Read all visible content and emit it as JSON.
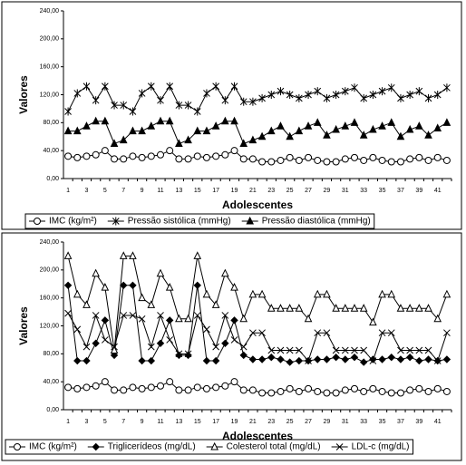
{
  "chart_data": [
    {
      "type": "line",
      "xlabel": "Adolescentes",
      "ylabel": "Valores",
      "categories": [
        "1",
        null,
        "3",
        null,
        "5",
        null,
        "7",
        null,
        "9",
        null,
        "11",
        null,
        "13",
        null,
        "15",
        null,
        "17",
        null,
        "19",
        null,
        "21",
        null,
        "23",
        null,
        "25",
        null,
        "27",
        null,
        "29",
        null,
        "31",
        null,
        "33",
        null,
        "35",
        null,
        "37",
        null,
        "39",
        null,
        "41",
        null
      ],
      "ylim": [
        0,
        240
      ],
      "yticks": [
        {
          "value": 0,
          "label": "0,00"
        },
        {
          "value": 40,
          "label": "40,00"
        },
        {
          "value": 80,
          "label": "80,00"
        },
        {
          "value": 120,
          "label": "120,00"
        },
        {
          "value": 160,
          "label": "160,00"
        },
        {
          "value": 200,
          "label": "200,00"
        },
        {
          "value": 240,
          "label": "240,00"
        }
      ],
      "series": [
        {
          "name": "IMC (kg/m²)",
          "color": "#000000",
          "marker": "circle",
          "values": [
            32,
            30,
            32,
            34,
            40,
            28,
            28,
            32,
            30,
            32,
            34,
            40,
            28,
            28,
            32,
            30,
            32,
            34,
            40,
            28,
            28,
            24,
            24,
            26,
            30,
            26,
            30,
            26,
            24,
            24,
            28,
            30,
            26,
            30,
            26,
            24,
            24,
            28,
            30,
            26,
            30,
            26
          ]
        },
        {
          "name": "Pressão sistólica (mmHg)",
          "color": "#000000",
          "marker": "star",
          "values": [
            96,
            122,
            132,
            112,
            132,
            105,
            105,
            96,
            122,
            132,
            112,
            132,
            105,
            105,
            96,
            122,
            132,
            112,
            132,
            110,
            110,
            115,
            120,
            125,
            120,
            115,
            120,
            125,
            115,
            120,
            125,
            130,
            115,
            120,
            125,
            130,
            115,
            120,
            125,
            115,
            120,
            130
          ]
        },
        {
          "name": "Pressão diastólica (mmHg)",
          "color": "#000000",
          "marker": "triangle-filled",
          "values": [
            68,
            68,
            75,
            82,
            82,
            50,
            55,
            68,
            68,
            75,
            82,
            82,
            50,
            55,
            68,
            68,
            75,
            82,
            82,
            50,
            55,
            60,
            68,
            75,
            60,
            68,
            75,
            80,
            62,
            70,
            75,
            80,
            62,
            70,
            75,
            80,
            60,
            70,
            75,
            62,
            72,
            80
          ]
        }
      ]
    },
    {
      "type": "line",
      "xlabel": "Adolescentes",
      "ylabel": "Valores",
      "categories": [
        "1",
        null,
        "3",
        null,
        "5",
        null,
        "7",
        null,
        "9",
        null,
        "11",
        null,
        "13",
        null,
        "15",
        null,
        "17",
        null,
        "19",
        null,
        "21",
        null,
        "23",
        null,
        "25",
        null,
        "27",
        null,
        "29",
        null,
        "31",
        null,
        "33",
        null,
        "35",
        null,
        "37",
        null,
        "39",
        null,
        "41",
        null
      ],
      "ylim": [
        0,
        240
      ],
      "yticks": [
        {
          "value": 0,
          "label": "0,00"
        },
        {
          "value": 40,
          "label": "40,00"
        },
        {
          "value": 80,
          "label": "80,00"
        },
        {
          "value": 120,
          "label": "120,00"
        },
        {
          "value": 160,
          "label": "160,00"
        },
        {
          "value": 200,
          "label": "200,00"
        },
        {
          "value": 240,
          "label": "240,00"
        }
      ],
      "series": [
        {
          "name": "IMC (kg/m²)",
          "color": "#000000",
          "marker": "circle",
          "values": [
            32,
            30,
            32,
            34,
            40,
            28,
            28,
            32,
            30,
            32,
            34,
            40,
            28,
            28,
            32,
            30,
            32,
            34,
            40,
            28,
            28,
            24,
            24,
            26,
            30,
            26,
            30,
            26,
            24,
            24,
            28,
            30,
            26,
            30,
            26,
            24,
            24,
            28,
            30,
            26,
            30,
            26
          ]
        },
        {
          "name": "Triglicerídeos (mg/dL)",
          "color": "#000000",
          "marker": "diamond-filled",
          "values": [
            178,
            70,
            70,
            95,
            128,
            78,
            178,
            178,
            70,
            70,
            95,
            128,
            78,
            78,
            178,
            70,
            70,
            95,
            128,
            78,
            72,
            72,
            75,
            72,
            68,
            70,
            70,
            72,
            72,
            75,
            72,
            75,
            68,
            72,
            72,
            75,
            72,
            75,
            70,
            72,
            70,
            72
          ]
        },
        {
          "name": "Colesterol total (mg/dL)",
          "color": "#000000",
          "marker": "triangle",
          "values": [
            220,
            165,
            150,
            195,
            175,
            85,
            220,
            220,
            160,
            150,
            195,
            175,
            130,
            130,
            220,
            165,
            150,
            195,
            175,
            130,
            165,
            165,
            145,
            145,
            145,
            145,
            130,
            165,
            165,
            145,
            145,
            145,
            145,
            125,
            165,
            165,
            145,
            145,
            145,
            145,
            130,
            165
          ]
        },
        {
          "name": "LDL-c (mg/dL)",
          "color": "#000000",
          "marker": "x",
          "values": [
            138,
            115,
            90,
            135,
            100,
            90,
            135,
            135,
            130,
            90,
            135,
            100,
            80,
            80,
            135,
            115,
            90,
            135,
            100,
            90,
            110,
            110,
            85,
            85,
            85,
            85,
            70,
            110,
            110,
            85,
            85,
            85,
            85,
            70,
            110,
            110,
            85,
            85,
            85,
            85,
            70,
            110
          ]
        }
      ]
    }
  ]
}
